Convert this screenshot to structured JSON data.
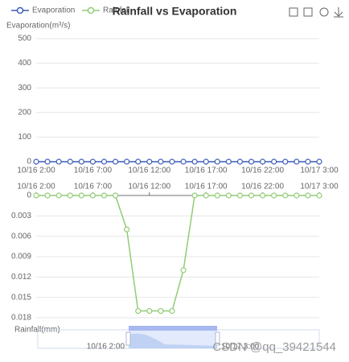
{
  "chart_data": {
    "type": "line",
    "title": "Rainfall vs Evaporation",
    "categories": [
      "10/16 2:00",
      null,
      null,
      null,
      null,
      "10/16 7:00",
      null,
      null,
      null,
      null,
      "10/16 12:00",
      null,
      null,
      null,
      null,
      "10/16 17:00",
      null,
      null,
      null,
      null,
      "10/16 22:00",
      null,
      null,
      null,
      null,
      "10/17 3:00"
    ],
    "series": [
      {
        "name": "Evaporation",
        "color": "#3d5cb8",
        "values": [
          0,
          0,
          0,
          0,
          0,
          0,
          0,
          0,
          0,
          0,
          0,
          0,
          0,
          0,
          0,
          0,
          0,
          0,
          0,
          0,
          0,
          0,
          0,
          0,
          0,
          0
        ]
      },
      {
        "name": "Rainfall",
        "color": "#91cc75",
        "axis": "y2",
        "values": [
          0,
          0,
          0,
          0,
          0,
          0,
          0,
          0,
          0.005,
          0.017,
          0.017,
          0.017,
          0.017,
          0.011,
          0,
          0,
          0,
          0,
          0,
          0,
          0,
          0,
          0,
          0,
          0,
          0
        ]
      }
    ],
    "ylabel": "Evaporation(m³/s)",
    "ylim": [
      0,
      500
    ],
    "yticks": [
      0,
      100,
      200,
      300,
      400,
      500
    ],
    "y2label": "Rainfall(mm)",
    "y2lim": [
      0,
      0.018
    ],
    "y2ticks": [
      0,
      0.003,
      0.006,
      0.009,
      0.012,
      0.015,
      0.018
    ],
    "y2inverse": true,
    "grid": true,
    "zoom_labels": [
      "10/16 2:00",
      "10/17 3:00"
    ],
    "watermark": "CSDN @qq_39421544"
  }
}
